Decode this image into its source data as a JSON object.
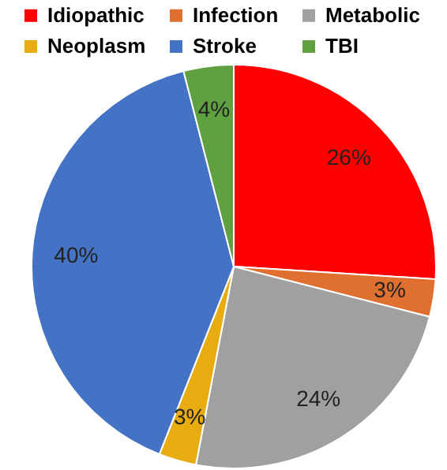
{
  "chart_data": {
    "type": "pie",
    "categories": [
      "Idiopathic",
      "Infection",
      "Metabolic",
      "Neoplasm",
      "Stroke",
      "TBI"
    ],
    "values": [
      26,
      3,
      24,
      3,
      40,
      4
    ],
    "colors": [
      "#ff0000",
      "#e07030",
      "#a0a0a0",
      "#e8ac10",
      "#4472c4",
      "#5fa040"
    ],
    "value_labels": [
      "26%",
      "3%",
      "24%",
      "3%",
      "40%",
      "4%"
    ],
    "legend": "top"
  }
}
